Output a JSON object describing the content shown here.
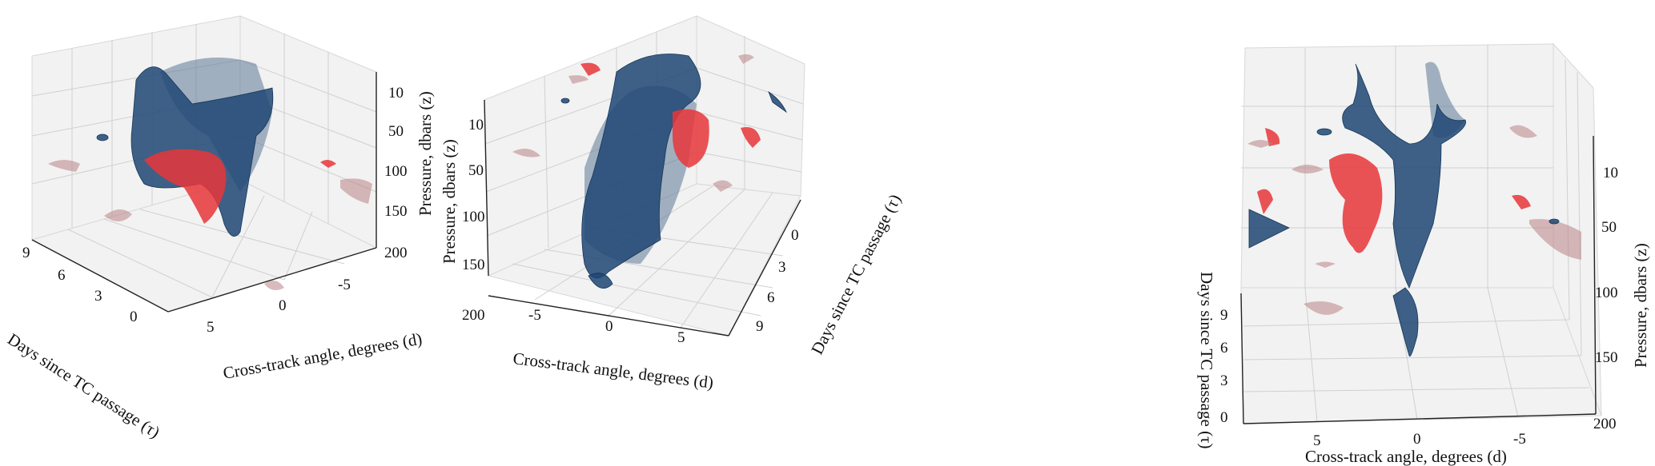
{
  "chart_data": [
    {
      "type": "3d-isosurface",
      "panel": "left",
      "x_axis": {
        "label": "Cross-track angle, degrees (d)",
        "ticks": [
          "5",
          "0",
          "-5"
        ]
      },
      "y_axis": {
        "label": "Days since TC passage (τ)",
        "ticks": [
          "9",
          "6",
          "3",
          "0"
        ]
      },
      "z_axis": {
        "label": "Pressure, dbars (z)",
        "ticks": [
          "10",
          "50",
          "100",
          "150",
          "200"
        ]
      },
      "grid": true,
      "colors": {
        "negative_surface": "#1f4673",
        "positive_surface": "#e8363a",
        "faded_positive": "#b98486"
      }
    },
    {
      "type": "3d-isosurface",
      "panel": "middle",
      "x_axis": {
        "label": "Cross-track angle, degrees (d)",
        "ticks": [
          "-5",
          "0",
          "5"
        ]
      },
      "y_axis": {
        "label": "Days since TC passage (τ)",
        "ticks": [
          "0",
          "3",
          "6",
          "9"
        ]
      },
      "z_axis": {
        "label": "Pressure, dbars (z)",
        "ticks": [
          "10",
          "50",
          "100",
          "150",
          "200"
        ]
      },
      "grid": true,
      "colors": {
        "negative_surface": "#1f4673",
        "positive_surface": "#e8363a",
        "faded_positive": "#b98486"
      }
    },
    {
      "type": "3d-isosurface",
      "panel": "right",
      "x_axis": {
        "label": "Cross-track angle, degrees (d)",
        "ticks": [
          "5",
          "0",
          "-5"
        ]
      },
      "y_axis": {
        "label": "Days since TC passage (τ)",
        "ticks": [
          "9",
          "6",
          "3",
          "0"
        ]
      },
      "z_axis": {
        "label": "Pressure, dbars (z)",
        "ticks": [
          "10",
          "50",
          "100",
          "150",
          "200"
        ]
      },
      "grid": true,
      "colors": {
        "negative_surface": "#1f4673",
        "positive_surface": "#e8363a",
        "faded_positive": "#b98486"
      }
    }
  ]
}
